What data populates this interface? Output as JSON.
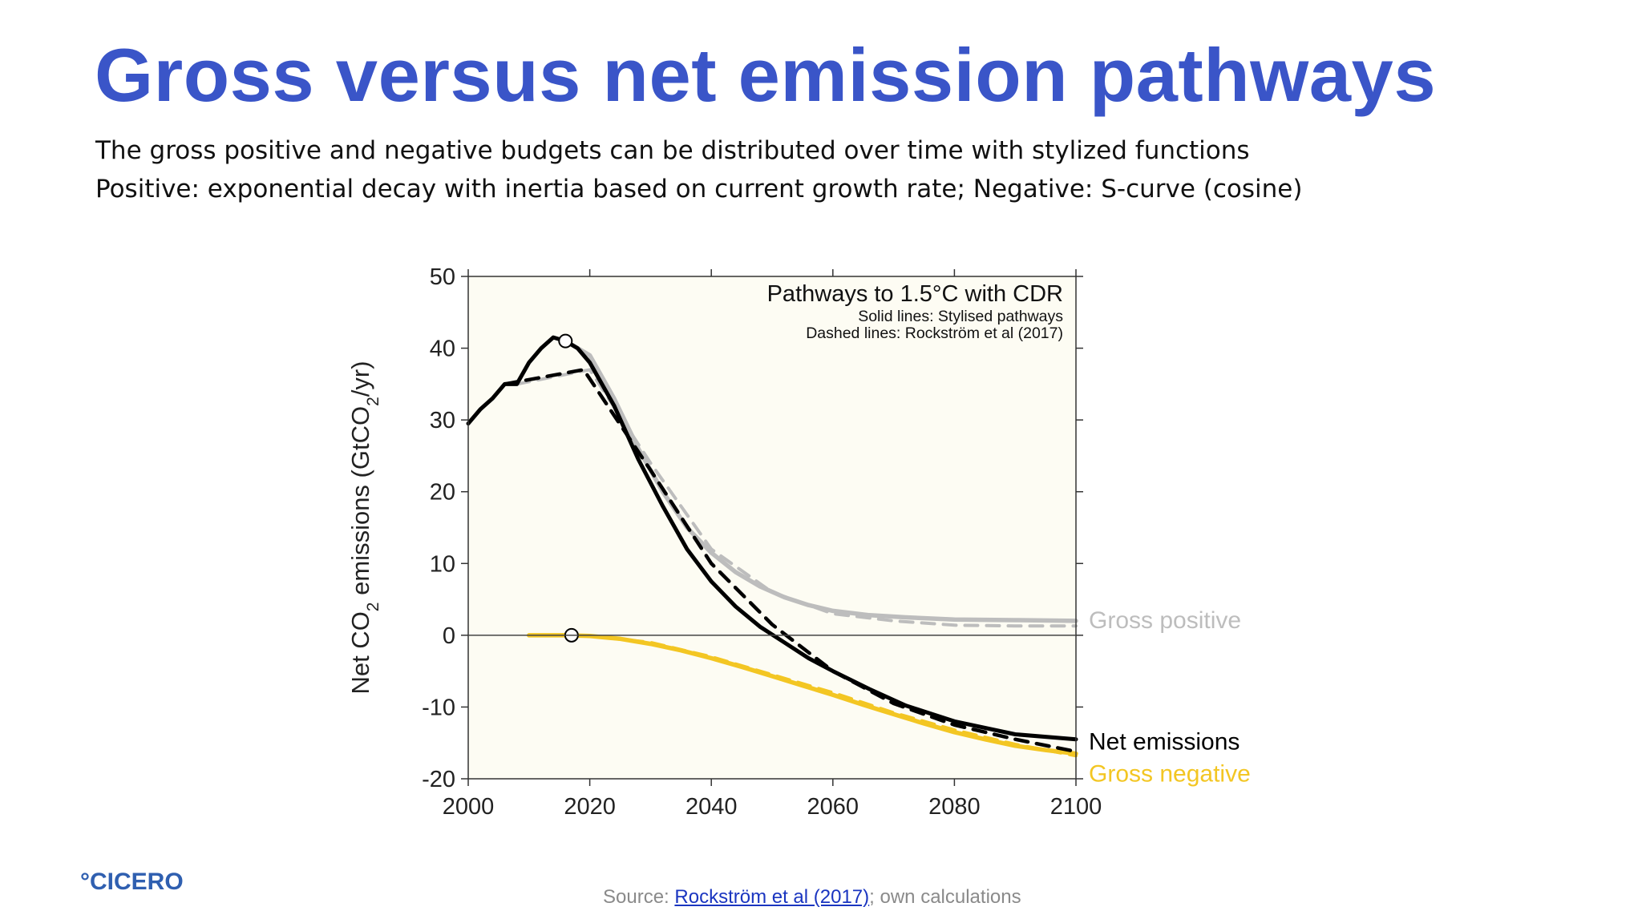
{
  "slide": {
    "title": "Gross versus net emission pathways",
    "subtitle_line1": "The gross positive and negative budgets can be distributed over time with stylized functions",
    "subtitle_line2": "Positive: exponential decay with inertia based on current growth rate; Negative: S-curve (cosine)"
  },
  "logo": {
    "text": "°CICERO",
    "color": "#2f5fb0"
  },
  "source": {
    "prefix": "Source: ",
    "link_text": "Rockström et al (2017)",
    "suffix": "; own calculations"
  },
  "colors": {
    "title": "#3a55c8",
    "plot_background": "#fdfcf3",
    "net": "#000000",
    "gross_positive": "#bdbdbd",
    "gross_negative": "#f3c623"
  },
  "chart_data": {
    "type": "line",
    "title": "Pathways to 1.5°C with CDR",
    "notes": [
      "Solid lines: Stylised pathways",
      "Dashed lines: Rockström et al (2017)"
    ],
    "xlabel": "",
    "ylabel_parts": [
      "Net CO",
      "2",
      " emissions (GtCO",
      "2",
      "/yr)"
    ],
    "xlim": [
      2000,
      2100
    ],
    "ylim": [
      -20,
      50
    ],
    "xticks": [
      2000,
      2020,
      2040,
      2060,
      2080,
      2100
    ],
    "yticks": [
      -20,
      -10,
      0,
      10,
      20,
      30,
      40,
      50
    ],
    "zero_line": true,
    "grid": false,
    "series": [
      {
        "name": "Gross positive",
        "style": "solid",
        "color": "#bdbdbd",
        "x": [
          2016,
          2020,
          2024,
          2028,
          2032,
          2036,
          2040,
          2044,
          2048,
          2052,
          2056,
          2060,
          2066,
          2072,
          2080,
          2090,
          2100
        ],
        "y": [
          41,
          39,
          33,
          26,
          20,
          15,
          11.5,
          8.8,
          6.8,
          5.3,
          4.2,
          3.4,
          2.8,
          2.5,
          2.2,
          2.1,
          2.0
        ]
      },
      {
        "name": "",
        "style": "dashed",
        "color": "#bdbdbd",
        "x": [
          2008,
          2020,
          2030,
          2040,
          2050,
          2060,
          2070,
          2080,
          2090,
          2100
        ],
        "y": [
          35,
          37,
          24,
          12,
          6,
          3,
          2,
          1.4,
          1.3,
          1.3
        ]
      },
      {
        "name": "Net emissions",
        "style": "solid",
        "color": "#000000",
        "x": [
          2000,
          2002,
          2004,
          2006,
          2008,
          2010,
          2012,
          2014,
          2016,
          2018,
          2020,
          2024,
          2028,
          2032,
          2036,
          2040,
          2044,
          2048,
          2052,
          2056,
          2060,
          2066,
          2072,
          2080,
          2090,
          2100
        ],
        "y": [
          29.5,
          31.5,
          33,
          35,
          35,
          38,
          40,
          41.5,
          41,
          40,
          38,
          32,
          24.5,
          18,
          12,
          7.5,
          4,
          1.2,
          -1,
          -3.2,
          -5,
          -7.5,
          -9.8,
          -12,
          -13.8,
          -14.5
        ]
      },
      {
        "name": "",
        "style": "dashed",
        "color": "#000000",
        "x": [
          2006,
          2019,
          2030,
          2040,
          2050,
          2060,
          2070,
          2080,
          2090,
          2100
        ],
        "y": [
          35,
          37,
          23,
          10,
          1.5,
          -5,
          -9.5,
          -12.5,
          -14.5,
          -16.2
        ]
      },
      {
        "name": "Gross negative",
        "style": "solid",
        "color": "#f3c623",
        "x": [
          2010,
          2016,
          2020,
          2025,
          2030,
          2035,
          2040,
          2045,
          2050,
          2055,
          2060,
          2065,
          2070,
          2075,
          2080,
          2085,
          2090,
          2095,
          2100
        ],
        "y": [
          0,
          0,
          -0.1,
          -0.5,
          -1.2,
          -2.1,
          -3.2,
          -4.4,
          -5.7,
          -7.0,
          -8.3,
          -9.7,
          -11.0,
          -12.3,
          -13.5,
          -14.5,
          -15.4,
          -16.0,
          -16.5
        ]
      },
      {
        "name": "",
        "style": "dashed",
        "color": "#f3c623",
        "x": [
          2016,
          2020,
          2030,
          2040,
          2050,
          2060,
          2070,
          2080,
          2090,
          2100
        ],
        "y": [
          0,
          -0.1,
          -1.0,
          -3.0,
          -5.5,
          -8.0,
          -10.8,
          -13.2,
          -15.2,
          -16.8
        ]
      }
    ],
    "markers": [
      {
        "label": "",
        "x": 2016,
        "y": 41
      },
      {
        "label": "",
        "x": 2017,
        "y": 0
      }
    ]
  }
}
